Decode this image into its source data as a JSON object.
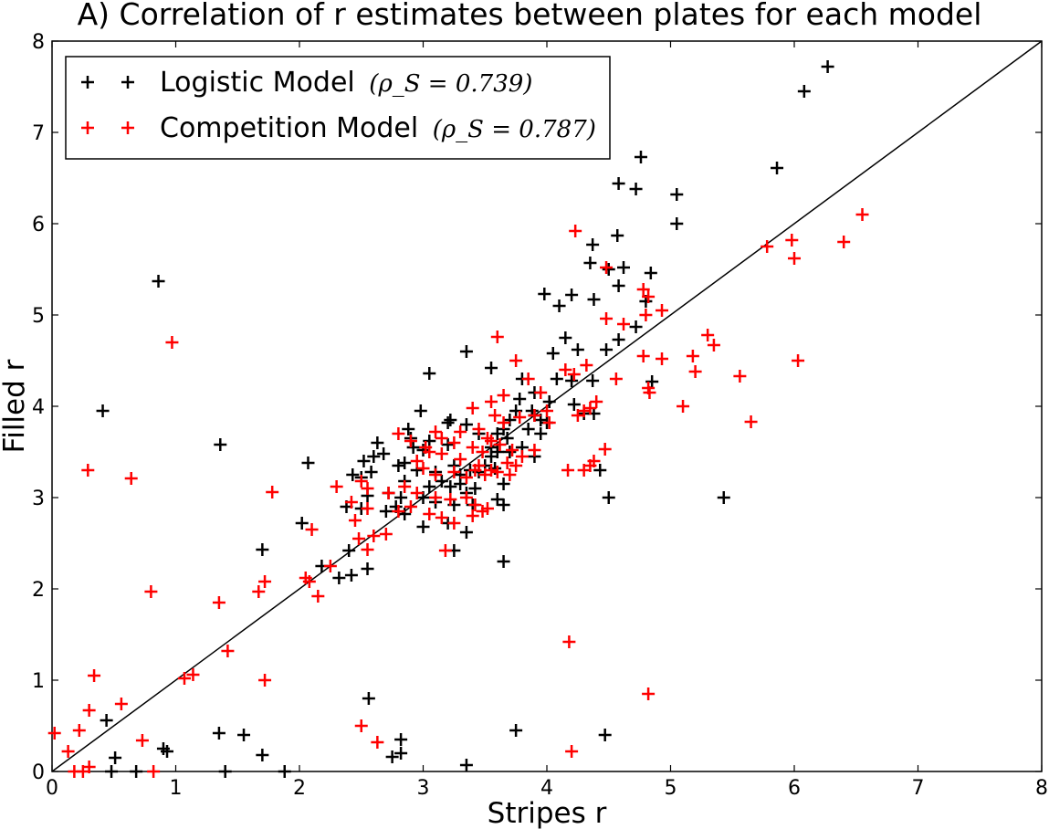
{
  "chart_data": {
    "type": "scatter",
    "title": "A) Correlation of r estimates between plates for each model",
    "xlabel": "Stripes r",
    "ylabel": "Filled r",
    "xlim": [
      0,
      8
    ],
    "ylim": [
      0,
      8
    ],
    "xticks": [
      "0",
      "1",
      "2",
      "3",
      "4",
      "5",
      "6",
      "7",
      "8"
    ],
    "yticks": [
      "0",
      "1",
      "2",
      "3",
      "4",
      "5",
      "6",
      "7",
      "8"
    ],
    "grid": false,
    "legend_position": "top-left",
    "reference_line": {
      "from": [
        0,
        0
      ],
      "to": [
        8,
        8
      ],
      "color": "#000000"
    },
    "series": [
      {
        "name": "Logistic Model",
        "stat_label": "(ρ_S = 0.739)",
        "stat": "ρS = 0.739",
        "color": "#000000",
        "marker": "plus",
        "points": [
          [
            6.27,
            7.72
          ],
          [
            6.08,
            7.45
          ],
          [
            4.76,
            6.73
          ],
          [
            5.86,
            6.61
          ],
          [
            4.58,
            6.44
          ],
          [
            4.72,
            6.38
          ],
          [
            5.05,
            6.32
          ],
          [
            5.05,
            6.0
          ],
          [
            4.57,
            5.87
          ],
          [
            4.37,
            5.77
          ],
          [
            4.35,
            5.57
          ],
          [
            4.5,
            5.5
          ],
          [
            4.62,
            5.52
          ],
          [
            4.84,
            5.46
          ],
          [
            0.86,
            5.37
          ],
          [
            4.58,
            5.32
          ],
          [
            3.98,
            5.23
          ],
          [
            4.2,
            5.22
          ],
          [
            4.38,
            5.17
          ],
          [
            4.8,
            5.15
          ],
          [
            4.1,
            5.1
          ],
          [
            4.72,
            4.87
          ],
          [
            4.58,
            4.73
          ],
          [
            4.15,
            4.75
          ],
          [
            4.25,
            4.62
          ],
          [
            4.48,
            4.62
          ],
          [
            3.35,
            4.6
          ],
          [
            4.05,
            4.58
          ],
          [
            3.55,
            4.42
          ],
          [
            3.05,
            4.36
          ],
          [
            4.08,
            4.3
          ],
          [
            4.2,
            4.28
          ],
          [
            4.37,
            4.28
          ],
          [
            4.85,
            4.27
          ],
          [
            3.8,
            4.3
          ],
          [
            3.9,
            4.15
          ],
          [
            0.41,
            3.95
          ],
          [
            2.98,
            3.95
          ],
          [
            4.02,
            4.05
          ],
          [
            4.22,
            4.02
          ],
          [
            3.78,
            4.08
          ],
          [
            3.75,
            3.95
          ],
          [
            3.88,
            3.95
          ],
          [
            3.9,
            3.9
          ],
          [
            3.95,
            3.85
          ],
          [
            4.0,
            3.82
          ],
          [
            4.3,
            3.92
          ],
          [
            4.38,
            3.92
          ],
          [
            3.7,
            3.85
          ],
          [
            3.85,
            3.75
          ],
          [
            3.6,
            3.7
          ],
          [
            3.65,
            3.75
          ],
          [
            3.2,
            3.82
          ],
          [
            3.22,
            3.85
          ],
          [
            3.35,
            3.8
          ],
          [
            3.45,
            3.7
          ],
          [
            2.88,
            3.75
          ],
          [
            2.9,
            3.65
          ],
          [
            3.55,
            3.55
          ],
          [
            3.6,
            3.5
          ],
          [
            3.68,
            3.65
          ],
          [
            3.7,
            3.5
          ],
          [
            3.8,
            3.55
          ],
          [
            3.9,
            3.45
          ],
          [
            3.95,
            3.7
          ],
          [
            1.36,
            3.58
          ],
          [
            2.63,
            3.6
          ],
          [
            2.92,
            3.55
          ],
          [
            3.0,
            3.52
          ],
          [
            3.05,
            3.62
          ],
          [
            3.2,
            3.58
          ],
          [
            2.52,
            3.4
          ],
          [
            2.6,
            3.45
          ],
          [
            2.68,
            3.48
          ],
          [
            2.85,
            3.38
          ],
          [
            2.95,
            3.3
          ],
          [
            3.1,
            3.28
          ],
          [
            3.25,
            3.35
          ],
          [
            3.3,
            3.25
          ],
          [
            3.38,
            3.3
          ],
          [
            3.45,
            3.28
          ],
          [
            3.5,
            3.35
          ],
          [
            3.55,
            3.45
          ],
          [
            3.58,
            3.32
          ],
          [
            2.07,
            3.38
          ],
          [
            2.43,
            3.25
          ],
          [
            2.5,
            3.22
          ],
          [
            2.58,
            3.28
          ],
          [
            2.8,
            3.35
          ],
          [
            2.85,
            3.18
          ],
          [
            3.05,
            3.12
          ],
          [
            3.15,
            3.18
          ],
          [
            3.22,
            3.12
          ],
          [
            3.3,
            3.15
          ],
          [
            3.35,
            3.05
          ],
          [
            3.42,
            3.1
          ],
          [
            3.65,
            3.15
          ],
          [
            2.55,
            3.02
          ],
          [
            2.72,
            3.05
          ],
          [
            2.82,
            3.0
          ],
          [
            3.0,
            3.0
          ],
          [
            3.1,
            2.95
          ],
          [
            3.25,
            2.92
          ],
          [
            3.4,
            2.92
          ],
          [
            4.43,
            3.3
          ],
          [
            4.5,
            3.0
          ],
          [
            5.43,
            3.0
          ],
          [
            3.6,
            2.98
          ],
          [
            3.65,
            2.92
          ],
          [
            2.38,
            2.9
          ],
          [
            2.5,
            2.88
          ],
          [
            2.7,
            2.85
          ],
          [
            2.78,
            2.9
          ],
          [
            2.85,
            2.82
          ],
          [
            3.2,
            2.72
          ],
          [
            3.0,
            2.68
          ],
          [
            3.35,
            2.62
          ],
          [
            2.02,
            2.72
          ],
          [
            2.4,
            2.42
          ],
          [
            3.25,
            2.42
          ],
          [
            1.7,
            2.43
          ],
          [
            2.18,
            2.25
          ],
          [
            2.32,
            2.12
          ],
          [
            2.42,
            2.15
          ],
          [
            2.55,
            2.22
          ],
          [
            3.65,
            2.3
          ],
          [
            2.56,
            0.8
          ],
          [
            0.44,
            0.56
          ],
          [
            0.9,
            0.25
          ],
          [
            0.93,
            0.22
          ],
          [
            1.35,
            0.42
          ],
          [
            1.55,
            0.4
          ],
          [
            4.47,
            0.4
          ],
          [
            3.75,
            0.45
          ],
          [
            2.82,
            0.35
          ],
          [
            0.51,
            0.15
          ],
          [
            1.7,
            0.18
          ],
          [
            2.75,
            0.16
          ],
          [
            2.82,
            0.2
          ],
          [
            3.35,
            0.07
          ],
          [
            0.48,
            0.0
          ],
          [
            0.68,
            0.0
          ],
          [
            1.4,
            0.0
          ],
          [
            1.88,
            0.0
          ]
        ]
      },
      {
        "name": "Competition Model",
        "stat_label": "(ρ_S = 0.787)",
        "stat": "ρS = 0.787",
        "color": "#ff0000",
        "marker": "plus",
        "points": [
          [
            6.55,
            6.1
          ],
          [
            4.23,
            5.92
          ],
          [
            5.78,
            5.75
          ],
          [
            5.98,
            5.82
          ],
          [
            6.4,
            5.8
          ],
          [
            6.0,
            5.62
          ],
          [
            4.48,
            5.52
          ],
          [
            4.78,
            5.28
          ],
          [
            4.82,
            5.2
          ],
          [
            4.8,
            5.0
          ],
          [
            4.48,
            4.96
          ],
          [
            4.93,
            5.05
          ],
          [
            4.62,
            4.9
          ],
          [
            0.97,
            4.7
          ],
          [
            3.6,
            4.76
          ],
          [
            5.3,
            4.78
          ],
          [
            5.35,
            4.67
          ],
          [
            4.78,
            4.55
          ],
          [
            4.93,
            4.52
          ],
          [
            5.18,
            4.55
          ],
          [
            6.03,
            4.5
          ],
          [
            4.32,
            4.45
          ],
          [
            4.15,
            4.4
          ],
          [
            4.22,
            4.35
          ],
          [
            5.2,
            4.38
          ],
          [
            5.56,
            4.33
          ],
          [
            4.56,
            4.3
          ],
          [
            4.82,
            4.2
          ],
          [
            4.83,
            4.15
          ],
          [
            3.75,
            4.5
          ],
          [
            3.85,
            4.3
          ],
          [
            3.95,
            4.15
          ],
          [
            3.65,
            4.12
          ],
          [
            3.55,
            4.05
          ],
          [
            4.4,
            4.05
          ],
          [
            4.35,
            3.98
          ],
          [
            5.1,
            4.0
          ],
          [
            5.65,
            3.83
          ],
          [
            3.4,
            3.98
          ],
          [
            3.58,
            3.9
          ],
          [
            3.45,
            3.75
          ],
          [
            3.3,
            3.72
          ],
          [
            3.52,
            3.65
          ],
          [
            3.65,
            3.82
          ],
          [
            3.78,
            3.88
          ],
          [
            3.9,
            3.9
          ],
          [
            4.0,
            3.95
          ],
          [
            4.02,
            3.82
          ],
          [
            4.25,
            3.9
          ],
          [
            4.3,
            3.95
          ],
          [
            3.1,
            3.72
          ],
          [
            3.15,
            3.65
          ],
          [
            3.25,
            3.6
          ],
          [
            3.4,
            3.55
          ],
          [
            3.48,
            3.5
          ],
          [
            3.55,
            3.62
          ],
          [
            3.62,
            3.58
          ],
          [
            3.72,
            3.52
          ],
          [
            3.8,
            3.45
          ],
          [
            3.9,
            3.52
          ],
          [
            2.8,
            3.7
          ],
          [
            2.9,
            3.62
          ],
          [
            3.02,
            3.55
          ],
          [
            3.05,
            3.5
          ],
          [
            3.15,
            3.48
          ],
          [
            3.3,
            3.42
          ],
          [
            3.45,
            3.35
          ],
          [
            3.55,
            3.3
          ],
          [
            3.68,
            3.38
          ],
          [
            3.75,
            3.35
          ],
          [
            4.47,
            3.53
          ],
          [
            4.38,
            3.4
          ],
          [
            4.35,
            3.35
          ],
          [
            4.17,
            3.3
          ],
          [
            4.3,
            3.3
          ],
          [
            2.95,
            3.4
          ],
          [
            3.0,
            3.32
          ],
          [
            3.1,
            3.25
          ],
          [
            3.25,
            3.28
          ],
          [
            3.35,
            3.22
          ],
          [
            3.42,
            3.3
          ],
          [
            3.5,
            3.25
          ],
          [
            3.6,
            3.28
          ],
          [
            3.7,
            3.25
          ],
          [
            0.29,
            3.3
          ],
          [
            0.64,
            3.21
          ],
          [
            2.3,
            3.12
          ],
          [
            2.5,
            3.18
          ],
          [
            2.55,
            3.1
          ],
          [
            2.72,
            3.05
          ],
          [
            2.85,
            3.12
          ],
          [
            2.95,
            3.05
          ],
          [
            3.1,
            3.0
          ],
          [
            3.22,
            2.98
          ],
          [
            3.35,
            3.0
          ],
          [
            3.42,
            2.92
          ],
          [
            3.52,
            2.88
          ],
          [
            1.78,
            3.06
          ],
          [
            2.42,
            2.95
          ],
          [
            2.55,
            2.88
          ],
          [
            2.8,
            2.85
          ],
          [
            2.9,
            2.9
          ],
          [
            3.05,
            2.82
          ],
          [
            3.15,
            2.78
          ],
          [
            3.25,
            2.72
          ],
          [
            3.4,
            2.8
          ],
          [
            3.48,
            2.85
          ],
          [
            2.1,
            2.65
          ],
          [
            2.45,
            2.75
          ],
          [
            2.48,
            2.55
          ],
          [
            2.6,
            2.58
          ],
          [
            2.7,
            2.6
          ],
          [
            2.55,
            2.43
          ],
          [
            3.18,
            2.42
          ],
          [
            2.25,
            2.25
          ],
          [
            2.05,
            2.12
          ],
          [
            2.08,
            2.08
          ],
          [
            1.72,
            2.08
          ],
          [
            2.15,
            1.92
          ],
          [
            0.8,
            1.97
          ],
          [
            1.67,
            1.97
          ],
          [
            1.35,
            1.85
          ],
          [
            1.42,
            1.32
          ],
          [
            4.18,
            1.42
          ],
          [
            0.34,
            1.05
          ],
          [
            1.07,
            1.02
          ],
          [
            1.14,
            1.06
          ],
          [
            1.72,
            1.0
          ],
          [
            0.56,
            0.74
          ],
          [
            0.3,
            0.67
          ],
          [
            4.82,
            0.85
          ],
          [
            0.02,
            0.42
          ],
          [
            0.22,
            0.45
          ],
          [
            0.13,
            0.22
          ],
          [
            0.73,
            0.34
          ],
          [
            2.5,
            0.5
          ],
          [
            2.63,
            0.32
          ],
          [
            4.2,
            0.22
          ],
          [
            0.3,
            0.05
          ],
          [
            0.18,
            0.0
          ],
          [
            0.25,
            0.0
          ],
          [
            0.82,
            0.0
          ]
        ]
      }
    ]
  }
}
